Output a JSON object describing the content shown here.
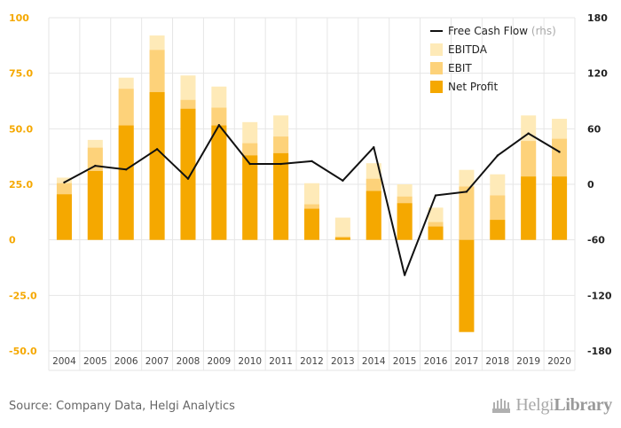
{
  "chart_data": {
    "type": "bar",
    "categories": [
      "2004",
      "2005",
      "2006",
      "2007",
      "2008",
      "2009",
      "2010",
      "2011",
      "2012",
      "2013",
      "2014",
      "2015",
      "2016",
      "2017",
      "2018",
      "2019",
      "2020"
    ],
    "series": [
      {
        "name": "Net Profit",
        "kind": "bar",
        "axis": "left",
        "color": "#f5a800",
        "values": [
          20.5,
          31.0,
          51.5,
          66.5,
          59.0,
          51.5,
          38.0,
          39.0,
          14.0,
          1.0,
          22.0,
          16.5,
          6.0,
          -41.5,
          9.0,
          28.5,
          28.5
        ]
      },
      {
        "name": "EBIT",
        "kind": "bar",
        "axis": "left",
        "color": "#fdd27a",
        "values": [
          25.5,
          41.5,
          68.0,
          85.5,
          63.0,
          59.5,
          43.5,
          46.5,
          16.0,
          1.5,
          27.5,
          19.5,
          8.0,
          24.0,
          20.0,
          44.5,
          45.5
        ]
      },
      {
        "name": "EBITDA",
        "kind": "bar",
        "axis": "left",
        "color": "#feeab8",
        "values": [
          28.0,
          45.0,
          73.0,
          92.0,
          74.0,
          69.0,
          53.0,
          56.0,
          25.5,
          10.0,
          34.5,
          25.0,
          14.5,
          31.5,
          29.5,
          56.0,
          54.5
        ]
      },
      {
        "name": "Free Cash Flow",
        "name_suffix": "(rhs)",
        "kind": "line",
        "axis": "right",
        "color": "#111111",
        "values": [
          2,
          20,
          16,
          38,
          6,
          64,
          22,
          22,
          25,
          4,
          40,
          -98,
          -12,
          -8,
          31,
          55,
          35
        ]
      }
    ],
    "y_left": {
      "range": [
        -50,
        100
      ],
      "ticks": [
        -50,
        -25,
        0,
        25,
        50,
        75,
        100
      ],
      "tick_labels": [
        "-50.0",
        "-25.0",
        "0",
        "25.0",
        "50.0",
        "75.0",
        "100"
      ],
      "tick_color": "#f5a800"
    },
    "y_right": {
      "range": [
        -180,
        180
      ],
      "ticks": [
        -180,
        -120,
        -60,
        0,
        60,
        120,
        180
      ],
      "tick_labels": [
        "-180",
        "-120",
        "-60",
        "0",
        "60",
        "120",
        "180"
      ],
      "tick_color": "#222222"
    },
    "grid": true,
    "legend": {
      "placement": "top-right",
      "items": [
        {
          "label": "Free Cash Flow",
          "suffix": "(rhs)",
          "kind": "line",
          "color": "#111111"
        },
        {
          "label": "EBITDA",
          "kind": "box",
          "color": "#feeab8"
        },
        {
          "label": "EBIT",
          "kind": "box",
          "color": "#fdd27a"
        },
        {
          "label": "Net Profit",
          "kind": "box",
          "color": "#f5a800"
        }
      ]
    }
  },
  "footer": {
    "source": "Source: Company Data, Helgi Analytics",
    "logo_light": "Helgi",
    "logo_bold": "Library"
  },
  "colors": {
    "grid": "#e6e6e6",
    "axis_box": "#cfcfcf",
    "ticklabel": "#444444"
  },
  "icons": {
    "logo": "helgi-library-logo-icon"
  }
}
